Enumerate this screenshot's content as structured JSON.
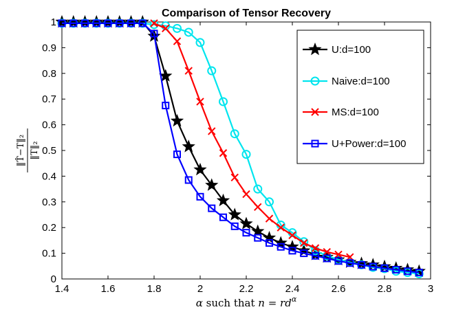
{
  "chart_data": {
    "type": "line",
    "title": "Comparison of Tensor Recovery",
    "xlabel": "α such that n = rd^α",
    "ylabel": "‖T̂−T‖₂ / ‖T‖₂",
    "xlim": [
      1.4,
      3.0
    ],
    "ylim": [
      0,
      1
    ],
    "xticks": [
      "1.4",
      "1.6",
      "1.8",
      "2",
      "2.2",
      "2.4",
      "2.6",
      "2.8",
      "3"
    ],
    "yticks": [
      "0",
      "0.1",
      "0.2",
      "0.3",
      "0.4",
      "0.5",
      "0.6",
      "0.7",
      "0.8",
      "0.9",
      "1"
    ],
    "legend_position": "top-right",
    "series": [
      {
        "name": "U:d=100",
        "color": "#000000",
        "marker": "star",
        "x": [
          1.4,
          1.45,
          1.5,
          1.55,
          1.6,
          1.65,
          1.7,
          1.75,
          1.8,
          1.85,
          1.9,
          1.95,
          2.0,
          2.05,
          2.1,
          2.15,
          2.2,
          2.25,
          2.3,
          2.35,
          2.4,
          2.45,
          2.5,
          2.55,
          2.6,
          2.65,
          2.7,
          2.75,
          2.8,
          2.85,
          2.9,
          2.95
        ],
        "values": [
          1,
          1,
          1,
          1,
          1,
          1,
          1,
          1,
          0.945,
          0.79,
          0.615,
          0.515,
          0.425,
          0.365,
          0.305,
          0.25,
          0.215,
          0.185,
          0.16,
          0.14,
          0.125,
          0.11,
          0.095,
          0.085,
          0.075,
          0.065,
          0.06,
          0.055,
          0.048,
          0.042,
          0.036,
          0.03
        ]
      },
      {
        "name": "Naive:d=100",
        "color": "#00e5ee",
        "marker": "circle",
        "x": [
          1.4,
          1.45,
          1.5,
          1.55,
          1.6,
          1.65,
          1.7,
          1.75,
          1.8,
          1.85,
          1.9,
          1.95,
          2.0,
          2.05,
          2.1,
          2.15,
          2.2,
          2.25,
          2.3,
          2.35,
          2.4,
          2.45,
          2.5,
          2.55,
          2.6,
          2.65,
          2.7,
          2.75,
          2.8,
          2.85,
          2.9,
          2.95
        ],
        "values": [
          0.995,
          0.995,
          0.995,
          0.995,
          0.995,
          0.995,
          0.995,
          0.995,
          0.99,
          0.985,
          0.975,
          0.96,
          0.92,
          0.81,
          0.69,
          0.565,
          0.485,
          0.35,
          0.3,
          0.21,
          0.18,
          0.145,
          0.11,
          0.09,
          0.075,
          0.065,
          0.055,
          0.045,
          0.04,
          0.03,
          0.025,
          0.02
        ]
      },
      {
        "name": "MS:d=100",
        "color": "#ff0000",
        "marker": "x",
        "x": [
          1.8,
          1.85,
          1.9,
          1.95,
          2.0,
          2.05,
          2.1,
          2.15,
          2.2,
          2.25,
          2.3,
          2.35,
          2.4,
          2.45,
          2.5,
          2.55,
          2.6,
          2.65
        ],
        "values": [
          0.995,
          0.975,
          0.925,
          0.81,
          0.69,
          0.575,
          0.49,
          0.395,
          0.33,
          0.28,
          0.235,
          0.2,
          0.17,
          0.14,
          0.12,
          0.105,
          0.095,
          0.085
        ]
      },
      {
        "name": "U+Power:d=100",
        "color": "#0000ff",
        "marker": "square",
        "x": [
          1.4,
          1.45,
          1.5,
          1.55,
          1.6,
          1.65,
          1.7,
          1.75,
          1.8,
          1.85,
          1.9,
          1.95,
          2.0,
          2.05,
          2.1,
          2.15,
          2.2,
          2.25,
          2.3,
          2.35,
          2.4,
          2.45,
          2.5,
          2.55,
          2.6,
          2.65,
          2.7,
          2.75,
          2.8,
          2.85,
          2.9,
          2.95
        ],
        "values": [
          0.995,
          0.995,
          0.995,
          0.995,
          0.995,
          0.995,
          0.995,
          0.995,
          0.955,
          0.675,
          0.485,
          0.385,
          0.32,
          0.275,
          0.24,
          0.205,
          0.18,
          0.16,
          0.14,
          0.125,
          0.11,
          0.1,
          0.09,
          0.08,
          0.07,
          0.062,
          0.055,
          0.048,
          0.042,
          0.036,
          0.03,
          0.025
        ]
      }
    ]
  }
}
